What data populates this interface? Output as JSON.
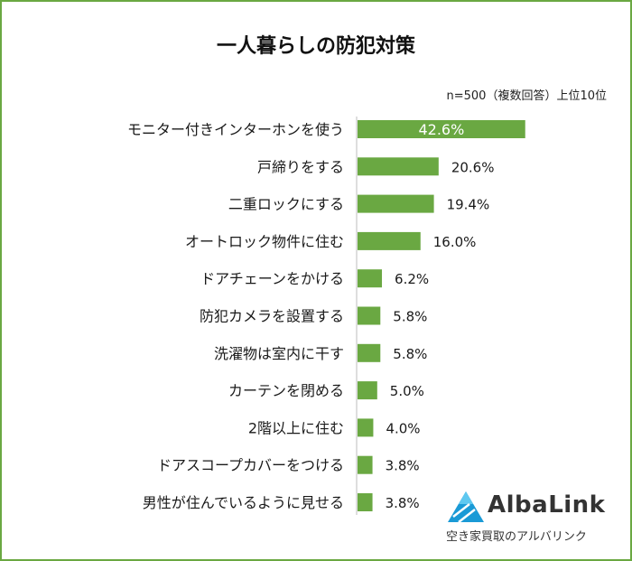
{
  "chart_data": {
    "type": "bar",
    "orientation": "horizontal",
    "title": "一人暮らしの防犯対策",
    "note": "n=500（複数回答）上位10位",
    "categories": [
      "モニター付きインターホンを使う",
      "戸締りをする",
      "二重ロックにする",
      "オートロック物件に住む",
      "ドアチェーンをかける",
      "防犯カメラを設置する",
      "洗濯物は室内に干す",
      "カーテンを閉める",
      "2階以上に住む",
      "ドアスコープカバーをつける",
      "男性が住んでいるように見せる"
    ],
    "values": [
      42.6,
      20.6,
      19.4,
      16.0,
      6.2,
      5.8,
      5.8,
      5.0,
      4.0,
      3.8,
      3.8
    ],
    "value_labels": [
      "42.6%",
      "20.6%",
      "19.4%",
      "16.0%",
      "6.2%",
      "5.8%",
      "5.8%",
      "5.0%",
      "4.0%",
      "3.8%",
      "3.8%"
    ],
    "xlim": [
      0,
      100
    ],
    "grid": false,
    "colors": {
      "bar": "#6aa842",
      "axis": "#bdbdbd",
      "frame": "#6aa842"
    }
  },
  "logo": {
    "name": "AlbaLink",
    "subtitle": "空き家買取のアルバリンク",
    "icon": "triangle-logo-icon",
    "colors": [
      "#1a9ad6",
      "#2bb3e8",
      "#0f6fb0"
    ]
  }
}
